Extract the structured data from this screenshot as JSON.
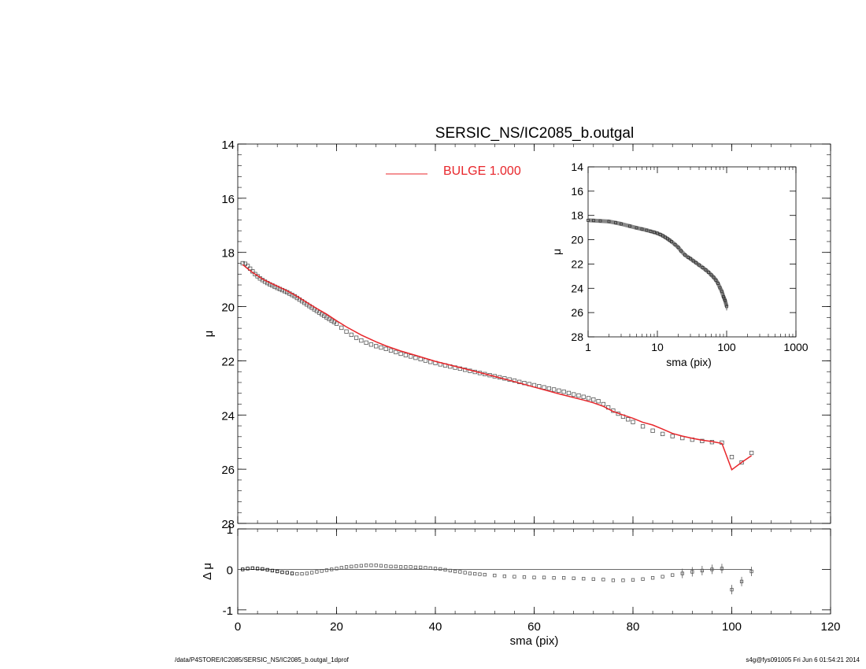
{
  "title": "SERSIC_NS/IC2085_b.outgal",
  "legend": {
    "label": "BULGE  1.000",
    "color": "#e8262b",
    "placement": "top-center"
  },
  "footer": {
    "left": "/data/P4STORE/IC2085/SERSIC_NS/IC2085_b.outgal_1dprof",
    "right": "s4g@fys091005  Fri Jun  6 01:54:21 2014"
  },
  "chart_data": [
    {
      "name": "profile",
      "type": "scatter",
      "ylabel": "μ",
      "xlim": [
        0,
        120
      ],
      "ylim": [
        28,
        14
      ],
      "y_inverted": true,
      "xticks": [
        0,
        20,
        40,
        60,
        80,
        100,
        120
      ],
      "xtick_labels_shown": false,
      "yticks": [
        14,
        16,
        18,
        20,
        22,
        24,
        26,
        28
      ],
      "ytick_labels": [
        "14",
        "16",
        "18",
        "20",
        "22",
        "24",
        "26",
        "28"
      ],
      "marker_color": "#555555",
      "series": [
        {
          "name": "data",
          "x": [
            1,
            1.5,
            2,
            2.5,
            3,
            3.5,
            4,
            4.5,
            5,
            5.5,
            6,
            6.5,
            7,
            7.5,
            8,
            8.5,
            9,
            9.5,
            10,
            10.5,
            11,
            11.5,
            12,
            12.5,
            13,
            13.5,
            14,
            14.5,
            15,
            15.5,
            16,
            16.5,
            17,
            17.5,
            18,
            18.5,
            19,
            19.5,
            20,
            21,
            22,
            23,
            24,
            25,
            26,
            27,
            28,
            29,
            30,
            31,
            32,
            33,
            34,
            35,
            36,
            37,
            38,
            39,
            40,
            41,
            42,
            43,
            44,
            45,
            46,
            47,
            48,
            49,
            50,
            51,
            52,
            53,
            54,
            55,
            56,
            57,
            58,
            59,
            60,
            61,
            62,
            63,
            64,
            65,
            66,
            67,
            68,
            69,
            70,
            71,
            72,
            73,
            74,
            75,
            76,
            77,
            78,
            79,
            80,
            82,
            84,
            86,
            88,
            90,
            92,
            94,
            96,
            98,
            100,
            102,
            104
          ],
          "y": [
            18.4,
            18.42,
            18.5,
            18.6,
            18.7,
            18.8,
            18.88,
            18.96,
            19.02,
            19.08,
            19.13,
            19.18,
            19.22,
            19.27,
            19.31,
            19.35,
            19.39,
            19.43,
            19.47,
            19.52,
            19.57,
            19.62,
            19.68,
            19.74,
            19.8,
            19.86,
            19.92,
            19.98,
            20.04,
            20.1,
            20.16,
            20.22,
            20.28,
            20.34,
            20.4,
            20.46,
            20.52,
            20.57,
            20.63,
            20.78,
            20.92,
            21.04,
            21.15,
            21.25,
            21.33,
            21.4,
            21.46,
            21.51,
            21.56,
            21.62,
            21.68,
            21.74,
            21.79,
            21.84,
            21.89,
            21.94,
            21.99,
            22.04,
            22.08,
            22.13,
            22.17,
            22.21,
            22.25,
            22.29,
            22.33,
            22.37,
            22.41,
            22.45,
            22.49,
            22.53,
            22.57,
            22.61,
            22.65,
            22.69,
            22.73,
            22.78,
            22.82,
            22.86,
            22.9,
            22.94,
            22.98,
            23.02,
            23.06,
            23.1,
            23.14,
            23.19,
            23.24,
            23.28,
            23.33,
            23.38,
            23.43,
            23.49,
            23.6,
            23.72,
            23.84,
            23.95,
            24.06,
            24.16,
            24.26,
            24.42,
            24.58,
            24.7,
            24.78,
            24.85,
            24.91,
            24.96,
            25.0,
            25.02,
            25.55,
            25.75,
            25.4
          ]
        },
        {
          "name": "BULGE  1.000",
          "x": [
            1,
            2,
            3,
            4,
            5,
            6,
            7,
            8,
            9,
            10,
            11,
            12,
            14,
            16,
            18,
            20,
            22,
            25,
            28,
            30,
            33,
            36,
            40,
            45,
            50,
            55,
            60,
            65,
            70,
            72,
            74,
            76,
            78,
            80,
            82,
            84,
            86,
            88,
            90,
            92,
            94,
            96,
            98,
            100,
            102,
            104
          ],
          "y": [
            18.45,
            18.6,
            18.74,
            18.86,
            18.98,
            19.07,
            19.16,
            19.24,
            19.33,
            19.42,
            19.52,
            19.62,
            19.85,
            20.07,
            20.28,
            20.52,
            20.75,
            21.05,
            21.3,
            21.45,
            21.64,
            21.8,
            22.02,
            22.25,
            22.48,
            22.72,
            22.97,
            23.22,
            23.45,
            23.55,
            23.68,
            23.87,
            24.0,
            24.12,
            24.27,
            24.37,
            24.52,
            24.68,
            24.78,
            24.86,
            24.93,
            24.98,
            25.05,
            26.02,
            25.75,
            25.5
          ]
        }
      ]
    },
    {
      "name": "residual",
      "type": "scatter",
      "xlabel": "sma (pix)",
      "ylabel": "Δ μ",
      "xlim": [
        0,
        120
      ],
      "ylim": [
        -1.1,
        1.0
      ],
      "xticks": [
        0,
        20,
        40,
        60,
        80,
        100,
        120
      ],
      "xtick_labels": [
        "0",
        "20",
        "40",
        "60",
        "80",
        "100",
        "120"
      ],
      "yticks": [
        -1,
        0,
        1
      ],
      "ytick_labels": [
        "-1",
        "0",
        "1"
      ],
      "reference_line": 0,
      "x": [
        1,
        2,
        3,
        4,
        5,
        6,
        7,
        8,
        9,
        10,
        11,
        12,
        13,
        14,
        15,
        16,
        17,
        18,
        19,
        20,
        21,
        22,
        23,
        24,
        25,
        26,
        27,
        28,
        29,
        30,
        31,
        32,
        33,
        34,
        35,
        36,
        37,
        38,
        39,
        40,
        41,
        42,
        43,
        44,
        45,
        46,
        47,
        48,
        49,
        50,
        52,
        54,
        56,
        58,
        60,
        62,
        64,
        66,
        68,
        70,
        72,
        74,
        76,
        78,
        80,
        82,
        84,
        86,
        88,
        90,
        92,
        94,
        96,
        98,
        100,
        102,
        104
      ],
      "y": [
        0.0,
        0.02,
        0.03,
        0.02,
        0.01,
        -0.01,
        -0.03,
        -0.05,
        -0.07,
        -0.08,
        -0.1,
        -0.11,
        -0.11,
        -0.1,
        -0.08,
        -0.06,
        -0.04,
        -0.02,
        0.0,
        0.02,
        0.04,
        0.06,
        0.07,
        0.08,
        0.09,
        0.1,
        0.1,
        0.1,
        0.09,
        0.08,
        0.07,
        0.07,
        0.06,
        0.06,
        0.06,
        0.05,
        0.05,
        0.04,
        0.03,
        0.02,
        0.01,
        -0.01,
        -0.03,
        -0.05,
        -0.06,
        -0.08,
        -0.1,
        -0.11,
        -0.12,
        -0.13,
        -0.15,
        -0.17,
        -0.18,
        -0.19,
        -0.2,
        -0.2,
        -0.21,
        -0.21,
        -0.22,
        -0.23,
        -0.24,
        -0.25,
        -0.27,
        -0.27,
        -0.26,
        -0.24,
        -0.21,
        -0.18,
        -0.14,
        -0.1,
        -0.06,
        -0.03,
        0.0,
        0.02,
        -0.5,
        -0.3,
        -0.05
      ]
    },
    {
      "name": "inset",
      "type": "scatter",
      "xlabel": "sma (pix)",
      "ylabel": "μ",
      "x_scale": "log",
      "xlim": [
        1,
        1000
      ],
      "ylim": [
        28,
        14
      ],
      "y_inverted": true,
      "xticks": [
        1,
        10,
        100,
        1000
      ],
      "xtick_labels": [
        "1",
        "10",
        "100",
        "1000"
      ],
      "yticks": [
        14,
        16,
        18,
        20,
        22,
        24,
        26,
        28
      ],
      "ytick_labels": [
        "14",
        "16",
        "18",
        "20",
        "22",
        "24",
        "26",
        "28"
      ],
      "x": [
        1,
        1.2,
        1.5,
        2,
        2.5,
        3,
        4,
        5,
        6,
        7,
        8,
        9,
        10,
        11,
        12,
        13,
        14,
        15,
        16,
        18,
        20,
        22,
        25,
        28,
        30,
        33,
        36,
        40,
        45,
        50,
        55,
        60,
        65,
        70,
        75,
        80,
        85,
        90,
        95,
        100
      ],
      "y": [
        18.4,
        18.42,
        18.45,
        18.5,
        18.6,
        18.7,
        18.88,
        19.02,
        19.13,
        19.22,
        19.31,
        19.39,
        19.47,
        19.57,
        19.68,
        19.8,
        19.92,
        20.04,
        20.16,
        20.4,
        20.63,
        20.92,
        21.25,
        21.46,
        21.56,
        21.74,
        21.89,
        22.08,
        22.29,
        22.49,
        22.69,
        22.9,
        23.1,
        23.33,
        23.6,
        23.95,
        24.26,
        24.7,
        25.0,
        25.5
      ]
    }
  ]
}
